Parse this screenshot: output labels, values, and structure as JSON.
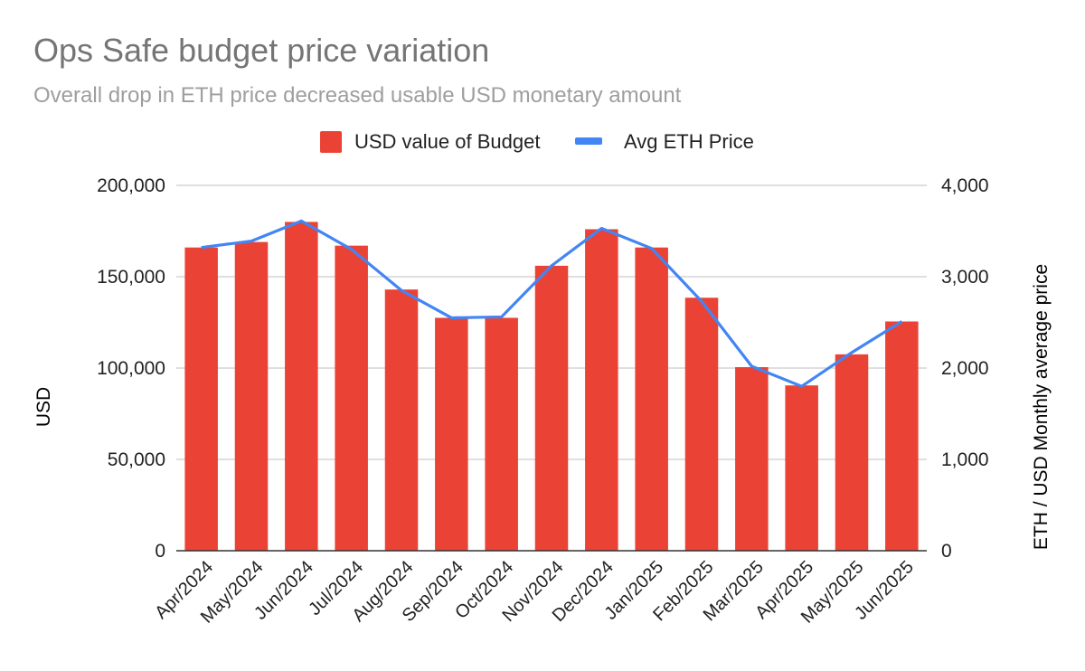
{
  "chart_data": {
    "type": "bar",
    "title": "Ops Safe budget price variation",
    "subtitle": "Overall drop in ETH price decreased usable USD monetary amount",
    "categories": [
      "Apr/2024",
      "May/2024",
      "Jun/2024",
      "Jul/2024",
      "Aug/2024",
      "Sep/2024",
      "Oct/2024",
      "Nov/2024",
      "Dec/2024",
      "Jan/2025",
      "Feb/2025",
      "Mar/2025",
      "Apr/2025",
      "May/2025",
      "Jun/2025"
    ],
    "series": [
      {
        "name": "USD value of Budget",
        "type": "bar",
        "axis": "left",
        "color": "#ea4335",
        "values": [
          166000,
          169000,
          180000,
          167000,
          143000,
          127500,
          127500,
          156000,
          176000,
          166000,
          138500,
          100500,
          90500,
          107500,
          125500
        ]
      },
      {
        "name": "Avg ETH Price",
        "type": "line",
        "axis": "right",
        "color": "#4285f4",
        "values": [
          3320,
          3390,
          3610,
          3300,
          2850,
          2550,
          2560,
          3120,
          3530,
          3310,
          2730,
          2020,
          1800,
          2170,
          2510
        ]
      }
    ],
    "ylabel": "USD",
    "ylabel_right": "ETH / USD Monthly average price",
    "ylim": [
      0,
      200000
    ],
    "ylim_right": [
      0,
      4000
    ],
    "yticks": [
      "0",
      "50,000",
      "100,000",
      "150,000",
      "200,000"
    ],
    "yticks_right": [
      "0",
      "1,000",
      "2,000",
      "3,000",
      "4,000"
    ],
    "grid": true,
    "legend_position": "top-center"
  }
}
